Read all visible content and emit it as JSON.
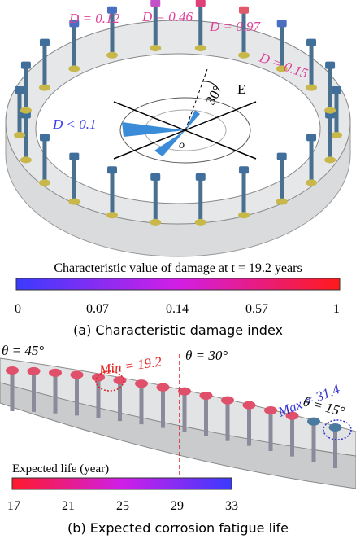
{
  "figure_a": {
    "labels": [
      "D = 0.12",
      "D = 0.46",
      "D = 0.97",
      "D = 0.15",
      "D < 0.1"
    ],
    "angle": "30°",
    "direction": "E",
    "origin": "o",
    "colorbar_title": "Characteristic value of damage at t = 19.2 years",
    "colorbar_ticks": [
      "0",
      "0.07",
      "0.14",
      "0.57",
      "1"
    ],
    "caption": "(a) Characteristic damage index"
  },
  "figure_b": {
    "angles": [
      "θ = 45°",
      "θ = 30°",
      "θ = 15°"
    ],
    "min_label": "Min = 19.2",
    "max_label": "Max = 31.4",
    "colorbar_title": "Expected life (year)",
    "colorbar_ticks": [
      "17",
      "21",
      "25",
      "29",
      "33"
    ],
    "caption": "(b) Expected corrosion fatigue life"
  }
}
